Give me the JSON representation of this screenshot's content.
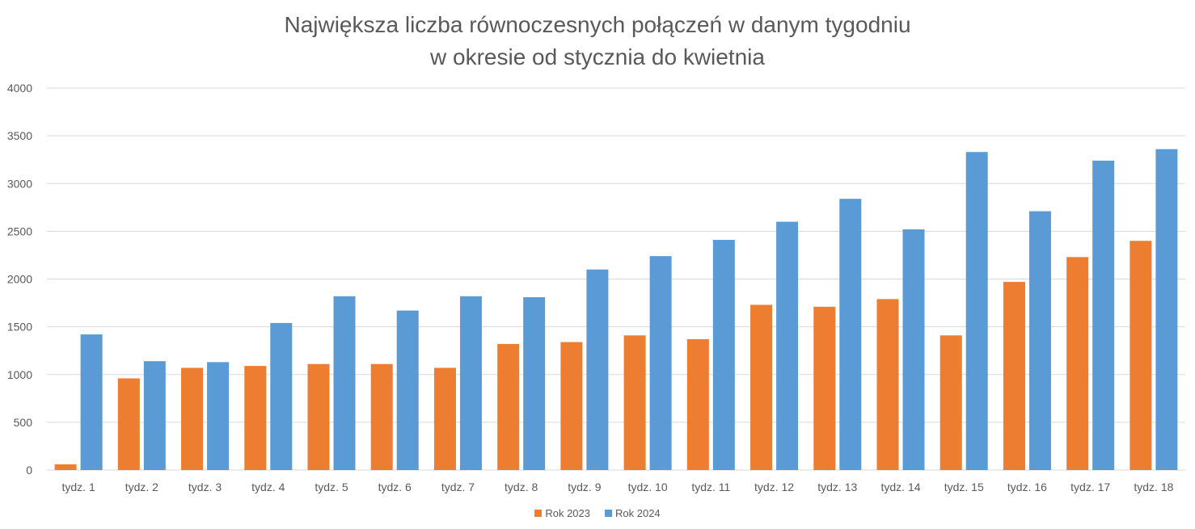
{
  "chart_data": {
    "type": "bar",
    "title_lines": [
      "Największa liczba równoczesnych połączeń w danym tygodniu",
      "w okresie od stycznia do kwietnia"
    ],
    "xlabel": "",
    "ylabel": "",
    "ylim": [
      0,
      4000
    ],
    "yticks": [
      0,
      500,
      1000,
      1500,
      2000,
      2500,
      3000,
      3500,
      4000
    ],
    "grid": true,
    "legend_position": "bottom",
    "categories": [
      "tydz. 1",
      "tydz. 2",
      "tydz. 3",
      "tydz. 4",
      "tydz. 5",
      "tydz. 6",
      "tydz. 7",
      "tydz. 8",
      "tydz. 9",
      "tydz. 10",
      "tydz. 11",
      "tydz. 12",
      "tydz. 13",
      "tydz. 14",
      "tydz. 15",
      "tydz. 16",
      "tydz. 17",
      "tydz. 18"
    ],
    "series": [
      {
        "name": "Rok 2023",
        "color": "#ED7D31",
        "values": [
          60,
          960,
          1070,
          1090,
          1110,
          1110,
          1070,
          1320,
          1340,
          1410,
          1370,
          1730,
          1710,
          1790,
          1410,
          1970,
          2230,
          2400
        ]
      },
      {
        "name": "Rok 2024",
        "color": "#5B9BD5",
        "values": [
          1420,
          1140,
          1130,
          1540,
          1820,
          1670,
          1820,
          1810,
          2100,
          2240,
          2410,
          2600,
          2840,
          2520,
          3330,
          2710,
          3240,
          3360
        ]
      }
    ]
  }
}
